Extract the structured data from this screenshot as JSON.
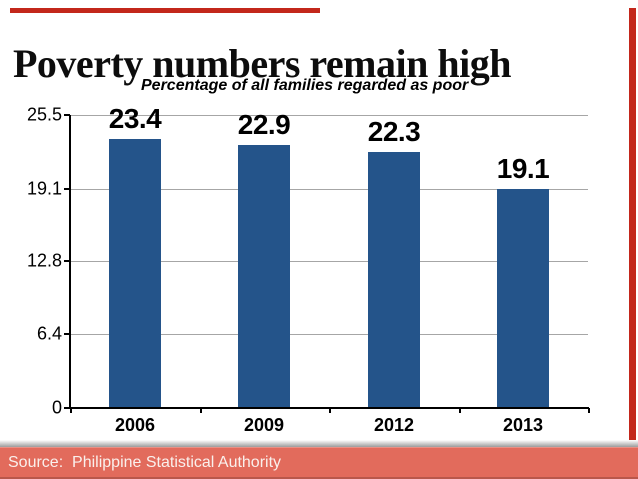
{
  "slide": {
    "title": "Poverty numbers remain high",
    "subtitle": "Percentage of all families regarded as poor",
    "source_label": "Source:  Philippine Statistical Authority"
  },
  "theme": {
    "accent_red": "#c3271b",
    "footer_bg": "#e26b5c",
    "footer_text_color": "#faf0ec",
    "bar_color": "#24548a",
    "gridline_color": "#a6a6a6",
    "axis_color": "#000000",
    "background": "#ffffff"
  },
  "chart_data": {
    "type": "bar",
    "title": "Percentage of all families regarded as poor",
    "categories": [
      "2006",
      "2009",
      "2012",
      "2013"
    ],
    "values": [
      23.4,
      22.9,
      22.3,
      19.1
    ],
    "data_labels": [
      "23.4",
      "22.9",
      "22.3",
      "19.1"
    ],
    "ytick_values": [
      25.5,
      19.1,
      12.8,
      6.4,
      0
    ],
    "ytick_labels": [
      "25.5",
      "19.1",
      "12.8",
      "6.4",
      "0"
    ],
    "ylim": [
      0,
      25.5
    ],
    "xlabel": "",
    "ylabel": "",
    "grid": true,
    "legend": false
  }
}
